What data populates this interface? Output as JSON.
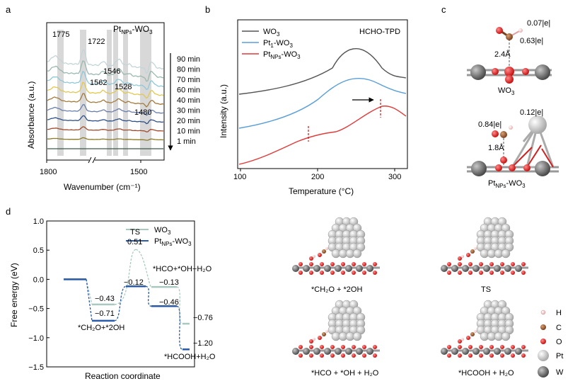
{
  "panels": {
    "a": "a",
    "b": "b",
    "c": "c",
    "d": "d"
  },
  "panel_a": {
    "title_main": "Pt",
    "title_sub": "NPs",
    "title_tail": "-WO",
    "title_tail_sub": "3",
    "ylabel": "Absorbance (a.u.)",
    "xlabel": "Wavenumber (cm⁻¹)",
    "peak_labels": [
      "1775",
      "1722",
      "1546",
      "1562",
      "1528",
      "1480"
    ],
    "time_labels": [
      "90 min",
      "80 min",
      "70 min",
      "60 min",
      "40 min",
      "30 min",
      "20 min",
      "10 min",
      "1 min"
    ],
    "colors": [
      "#3a5a4c",
      "#8b7a26",
      "#a34a2a",
      "#2d4f8a",
      "#6a7fae",
      "#a57a3a",
      "#e2c850",
      "#8fc8d8",
      "#9ab8b0",
      "#c4d4d8"
    ]
  },
  "chart_data": [
    {
      "type": "line",
      "title": "",
      "xlabel": "Wavenumber (cm⁻¹)",
      "ylabel": "Absorbance (a.u.)",
      "xticks": [
        "1800",
        "1500"
      ],
      "series_labels": [
        "90 min",
        "80 min",
        "70 min",
        "60 min",
        "40 min",
        "30 min",
        "20 min",
        "10 min",
        "1 min"
      ]
    },
    {
      "type": "line",
      "title": "HCHO-TPD",
      "xlabel": "Temperature (°C)",
      "ylabel": "Intensity (a.u.)",
      "xlim": [
        100,
        320
      ],
      "xticks": [
        "100",
        "200",
        "300"
      ],
      "series": [
        {
          "name": "WO3",
          "color": "#555555",
          "peak_x": 243
        },
        {
          "name": "Pt1-WO3",
          "color": "#5a9ed8",
          "peak_x": 245
        },
        {
          "name": "PtNPs-WO3",
          "color": "#e03a3a",
          "peak_x": 275,
          "shoulder_x": 188
        }
      ]
    },
    {
      "type": "line",
      "title": "",
      "xlabel": "Reaction coordinate",
      "ylabel": "Free energy (eV)",
      "ylim": [
        -1.5,
        1.0
      ],
      "yticks": [
        "1.0",
        "0.5",
        "0.0",
        "−0.5",
        "−1.0",
        "−1.5"
      ],
      "series": [
        {
          "name": "WO3",
          "color": "#a9c9c0",
          "values": [
            0.0,
            -0.43,
            0.51,
            -0.13,
            -0.76
          ]
        },
        {
          "name": "PtNPs-WO3",
          "color": "#2a5aa8",
          "values": [
            0.0,
            -0.71,
            -0.12,
            -0.46,
            -1.2
          ]
        }
      ]
    }
  ],
  "panel_b": {
    "title": "HCHO-TPD",
    "ylabel": "Intensity (a.u.)",
    "xlabel": "Temperature (°C)",
    "xticks": [
      "100",
      "200",
      "300"
    ],
    "legend": [
      {
        "main": "WO",
        "sub": "3",
        "color": "#555555"
      },
      {
        "main": "Pt",
        "sub": "1",
        "tail": "-WO",
        "tail_sub": "3",
        "color": "#5a9ed8"
      },
      {
        "main": "Pt",
        "sub": "NPs",
        "tail": "-WO",
        "tail_sub": "3",
        "color": "#e03a3a"
      }
    ]
  },
  "panel_c": {
    "top_charges": [
      "0.07|e|",
      "0.63|e|"
    ],
    "top_dist": "2.4Å",
    "top_label_main": "WO",
    "top_label_sub": "3",
    "bottom_charges": [
      "0.12|e|",
      "0.84|e|"
    ],
    "bottom_dist": "1.8Å",
    "bottom_label_main": "Pt",
    "bottom_label_sub": "NPs",
    "bottom_label_tail": "-WO",
    "bottom_label_tail_sub": "3"
  },
  "panel_d": {
    "ylabel": "Free energy (eV)",
    "xlabel": "Reaction coordinate",
    "yticks": [
      "1.0",
      "0.5",
      "0.0",
      "−0.5",
      "−1.0",
      "−1.5"
    ],
    "ts_label": "TS",
    "ts_value": "0.51",
    "values_wo3": [
      "−0.43",
      "−0.13",
      "−0.76"
    ],
    "values_pt": [
      "−0.71",
      "−0.12",
      "−0.46",
      "−1.20"
    ],
    "state_ch2o": "*CH₂O+*2OH",
    "state_hco": "*HCO+*OH+H₂O",
    "state_hcooh": "*HCOOH+H₂O",
    "legend_wo3_main": "WO",
    "legend_wo3_sub": "3",
    "legend_pt_main": "Pt",
    "legend_pt_sub": "NPs",
    "legend_pt_tail": "-WO",
    "legend_pt_tail_sub": "3"
  },
  "structures": {
    "captions": [
      "*CH₂O + *2OH",
      "TS",
      "*HCO + *OH + H₂O",
      "*HCOOH + H₂O"
    ]
  },
  "atom_legend": [
    "H",
    "C",
    "O",
    "Pt",
    "W"
  ]
}
